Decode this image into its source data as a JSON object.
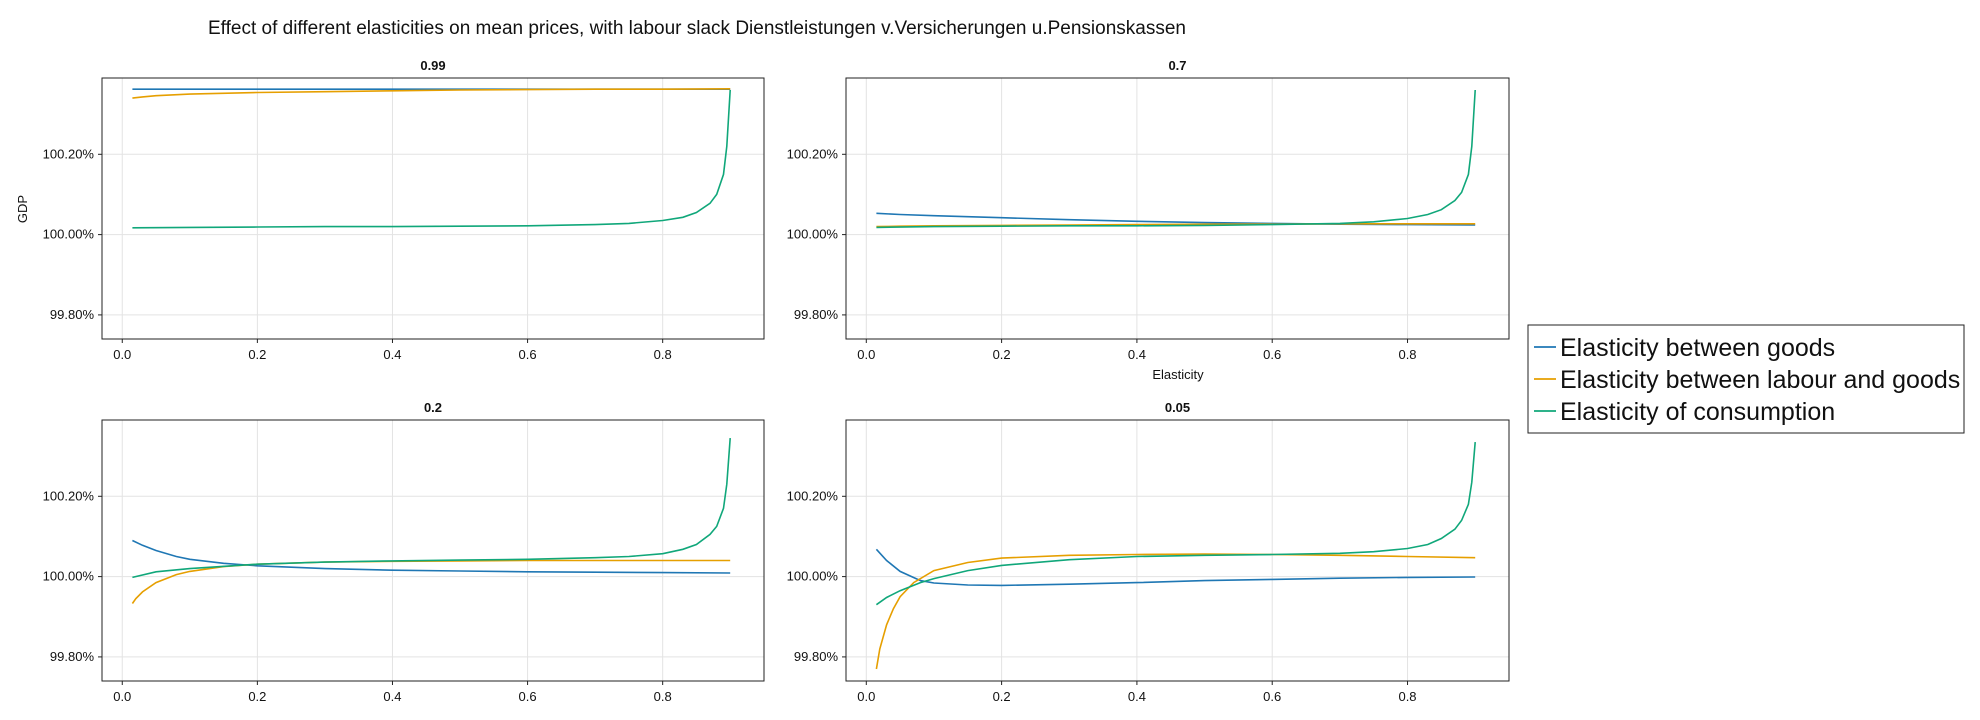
{
  "chart_data": {
    "type": "line",
    "title": "Effect of different elasticities on mean prices, with labour slack Dienstleistungen v.Versicherungen u.Pensionskassen",
    "ylabel": "GDP",
    "xlabel": "Elasticity",
    "legend": {
      "placement": "right",
      "entries": [
        "Elasticity between goods",
        "Elasticity between labour and goods",
        "Elasticity of consumption"
      ]
    },
    "colors": [
      "#1f77b4",
      "#e69f00",
      "#10a77a"
    ],
    "grid": true,
    "xlim": [
      -0.03,
      0.95
    ],
    "ylim": [
      99.74,
      100.39
    ],
    "xticks": [
      0.0,
      0.2,
      0.4,
      0.6,
      0.8
    ],
    "xtick_labels": [
      "0.0",
      "0.2",
      "0.4",
      "0.6",
      "0.8"
    ],
    "yticks": [
      99.8,
      100.0,
      100.2
    ],
    "ytick_labels": [
      "99.80%",
      "100.00%",
      "100.20%"
    ],
    "panels": [
      {
        "title": "0.99",
        "series": [
          {
            "name": "Elasticity between goods",
            "x": [
              0.015,
              0.05,
              0.1,
              0.2,
              0.3,
              0.4,
              0.5,
              0.6,
              0.7,
              0.8,
              0.85,
              0.88,
              0.9
            ],
            "y": [
              100.362,
              100.362,
              100.362,
              100.362,
              100.362,
              100.362,
              100.362,
              100.362,
              100.362,
              100.362,
              100.362,
              100.362,
              100.362
            ]
          },
          {
            "name": "Elasticity between labour and goods",
            "x": [
              0.015,
              0.03,
              0.05,
              0.1,
              0.2,
              0.3,
              0.4,
              0.5,
              0.6,
              0.7,
              0.8,
              0.9
            ],
            "y": [
              100.34,
              100.343,
              100.346,
              100.35,
              100.354,
              100.356,
              100.358,
              100.36,
              100.361,
              100.362,
              100.362,
              100.363
            ]
          },
          {
            "name": "Elasticity of consumption",
            "x": [
              0.015,
              0.1,
              0.2,
              0.3,
              0.4,
              0.5,
              0.6,
              0.7,
              0.75,
              0.8,
              0.83,
              0.85,
              0.87,
              0.88,
              0.89,
              0.895,
              0.9
            ],
            "y": [
              100.017,
              100.018,
              100.019,
              100.02,
              100.02,
              100.021,
              100.022,
              100.025,
              100.028,
              100.035,
              100.043,
              100.055,
              100.078,
              100.1,
              100.15,
              100.22,
              100.36
            ]
          }
        ]
      },
      {
        "title": "0.7",
        "series": [
          {
            "name": "Elasticity between goods",
            "x": [
              0.015,
              0.05,
              0.1,
              0.2,
              0.3,
              0.4,
              0.5,
              0.6,
              0.7,
              0.8,
              0.9
            ],
            "y": [
              100.053,
              100.05,
              100.047,
              100.042,
              100.037,
              100.033,
              100.03,
              100.028,
              100.026,
              100.025,
              100.024
            ]
          },
          {
            "name": "Elasticity between labour and goods",
            "x": [
              0.015,
              0.05,
              0.1,
              0.2,
              0.3,
              0.4,
              0.5,
              0.6,
              0.7,
              0.8,
              0.9
            ],
            "y": [
              100.02,
              100.021,
              100.022,
              100.023,
              100.024,
              100.025,
              100.026,
              100.026,
              100.027,
              100.027,
              100.027
            ]
          },
          {
            "name": "Elasticity of consumption",
            "x": [
              0.015,
              0.1,
              0.2,
              0.3,
              0.4,
              0.5,
              0.6,
              0.7,
              0.75,
              0.8,
              0.83,
              0.85,
              0.87,
              0.88,
              0.89,
              0.895,
              0.9
            ],
            "y": [
              100.018,
              100.02,
              100.021,
              100.022,
              100.022,
              100.023,
              100.025,
              100.028,
              100.032,
              100.04,
              100.05,
              100.062,
              100.085,
              100.105,
              100.15,
              100.22,
              100.36
            ]
          }
        ]
      },
      {
        "title": "0.2",
        "series": [
          {
            "name": "Elasticity between goods",
            "x": [
              0.015,
              0.03,
              0.05,
              0.08,
              0.1,
              0.15,
              0.2,
              0.3,
              0.4,
              0.5,
              0.6,
              0.7,
              0.8,
              0.9
            ],
            "y": [
              100.09,
              100.078,
              100.065,
              100.05,
              100.043,
              100.033,
              100.027,
              100.02,
              100.016,
              100.014,
              100.012,
              100.011,
              100.01,
              100.009
            ]
          },
          {
            "name": "Elasticity between labour and goods",
            "x": [
              0.015,
              0.02,
              0.03,
              0.05,
              0.08,
              0.1,
              0.15,
              0.2,
              0.3,
              0.4,
              0.5,
              0.6,
              0.7,
              0.8,
              0.9
            ],
            "y": [
              99.933,
              99.945,
              99.962,
              99.985,
              100.005,
              100.013,
              100.025,
              100.031,
              100.036,
              100.038,
              100.039,
              100.04,
              100.04,
              100.04,
              100.04
            ]
          },
          {
            "name": "Elasticity of consumption",
            "x": [
              0.015,
              0.05,
              0.1,
              0.2,
              0.3,
              0.4,
              0.5,
              0.6,
              0.7,
              0.75,
              0.8,
              0.83,
              0.85,
              0.87,
              0.88,
              0.89,
              0.895,
              0.9
            ],
            "y": [
              99.998,
              100.012,
              100.02,
              100.031,
              100.036,
              100.039,
              100.041,
              100.043,
              100.047,
              100.05,
              100.057,
              100.068,
              100.08,
              100.105,
              100.125,
              100.17,
              100.23,
              100.345
            ]
          }
        ]
      },
      {
        "title": "0.05",
        "series": [
          {
            "name": "Elasticity between goods",
            "x": [
              0.015,
              0.03,
              0.05,
              0.08,
              0.1,
              0.15,
              0.2,
              0.3,
              0.4,
              0.5,
              0.6,
              0.7,
              0.8,
              0.9
            ],
            "y": [
              100.068,
              100.04,
              100.013,
              99.99,
              99.984,
              99.979,
              99.978,
              99.981,
              99.985,
              99.99,
              99.993,
              99.996,
              99.998,
              99.999
            ]
          },
          {
            "name": "Elasticity between labour and goods",
            "x": [
              0.015,
              0.02,
              0.03,
              0.04,
              0.05,
              0.07,
              0.1,
              0.15,
              0.2,
              0.3,
              0.4,
              0.5,
              0.6,
              0.7,
              0.8,
              0.9
            ],
            "y": [
              99.77,
              99.82,
              99.88,
              99.92,
              99.95,
              99.985,
              100.015,
              100.035,
              100.046,
              100.053,
              100.055,
              100.056,
              100.055,
              100.053,
              100.05,
              100.047
            ]
          },
          {
            "name": "Elasticity of consumption",
            "x": [
              0.015,
              0.03,
              0.05,
              0.08,
              0.1,
              0.15,
              0.2,
              0.3,
              0.4,
              0.5,
              0.6,
              0.7,
              0.75,
              0.8,
              0.83,
              0.85,
              0.87,
              0.88,
              0.89,
              0.895,
              0.9
            ],
            "y": [
              99.93,
              99.948,
              99.965,
              99.985,
              99.995,
              100.015,
              100.028,
              100.042,
              100.05,
              100.053,
              100.055,
              100.058,
              100.062,
              100.07,
              100.08,
              100.095,
              100.118,
              100.14,
              100.18,
              100.235,
              100.335
            ]
          }
        ]
      }
    ]
  }
}
